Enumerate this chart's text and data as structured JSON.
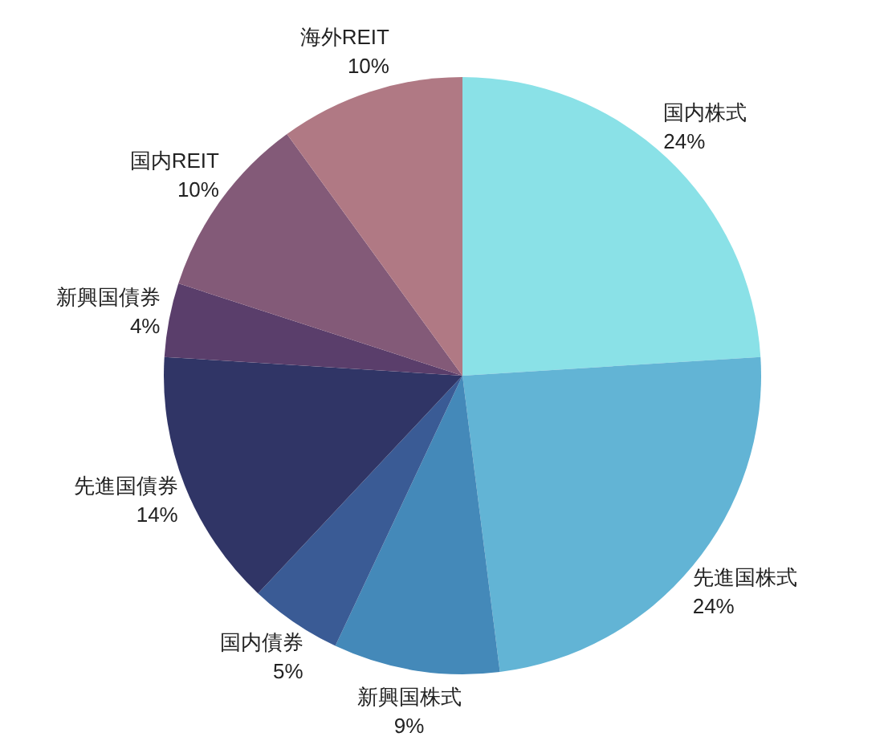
{
  "chart_data": {
    "type": "pie",
    "categories": [
      "国内株式",
      "先進国株式",
      "新興国株式",
      "国内債券",
      "先進国債券",
      "新興国債券",
      "国内REIT",
      "海外REIT"
    ],
    "values": [
      24,
      24,
      9,
      5,
      14,
      4,
      10,
      10
    ],
    "value_labels": [
      "24%",
      "24%",
      "9%",
      "5%",
      "14%",
      "4%",
      "10%",
      "10%"
    ],
    "colors": [
      "#8ae1e7",
      "#62b4d5",
      "#4489b9",
      "#3a5b95",
      "#303566",
      "#5a3e6b",
      "#835a78",
      "#b07984"
    ]
  }
}
